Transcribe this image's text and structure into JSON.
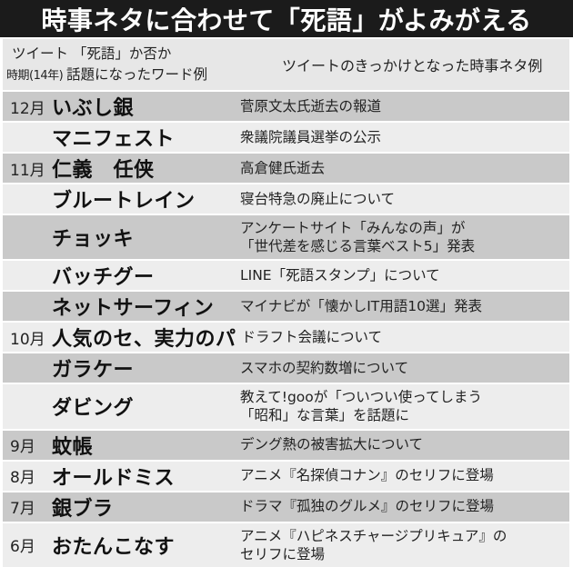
{
  "title_bar": {
    "title": "時事ネタに合わせて「死語」がよみがえる"
  },
  "table": {
    "header": {
      "word_header_line1": "ツイート 「死語」か否か",
      "period_header": "時期(14年)",
      "word_header_line2": "話題になったワード例",
      "news_header": "ツイートのきっかけとなった時事ネタ例"
    }
  },
  "chart_data": {
    "type": "table",
    "title": "時事ネタに合わせて「死語」がよみがえる",
    "columns": [
      "時期(14年)",
      "ツイート 「死語」か否か話題になったワード例",
      "ツイートのきっかけとなった時事ネタ例"
    ],
    "rows": [
      {
        "month": "12月",
        "word": "いぶし銀",
        "news": "菅原文太氏逝去の報道"
      },
      {
        "month": "",
        "word": "マニフェスト",
        "news": "衆議院議員選挙の公示"
      },
      {
        "month": "11月",
        "word": "仁義　任侠",
        "news": "高倉健氏逝去"
      },
      {
        "month": "",
        "word": "ブルートレイン",
        "news": "寝台特急の廃止について"
      },
      {
        "month": "",
        "word": "チョッキ",
        "news": "アンケートサイト「みんなの声」が\n「世代差を感じる言葉ベスト5」発表"
      },
      {
        "month": "",
        "word": "バッチグー",
        "news": "LINE「死語スタンプ」について"
      },
      {
        "month": "",
        "word": "ネットサーフィン",
        "news": "マイナビが「懐かしIT用語10選」発表"
      },
      {
        "month": "10月",
        "word": "人気のセ、実力のパ",
        "news": "ドラフト会議について"
      },
      {
        "month": "",
        "word": "ガラケー",
        "news": "スマホの契約数増について"
      },
      {
        "month": "",
        "word": "ダビング",
        "news": "教えて!gooが「ついつい使ってしまう\n「昭和」な言葉」を話題に"
      },
      {
        "month": "9月",
        "word": "蚊帳",
        "news": "デング熱の被害拡大について"
      },
      {
        "month": "8月",
        "word": "オールドミス",
        "news": "アニメ『名探偵コナン』のセリフに登場"
      },
      {
        "month": "7月",
        "word": "銀ブラ",
        "news": "ドラマ『孤独のグルメ』のセリフに登場"
      },
      {
        "month": "6月",
        "word": "おたんこなす",
        "news": "アニメ『ハピネスチャージプリキュア』の\nセリフに登場"
      }
    ]
  },
  "colors": {
    "title_bar_bg": "#1b1b1b",
    "title_text": "#ffffff",
    "header_row_bg": "#e7e7e7",
    "row_dark": "#c9c9c9",
    "row_light": "#ededed",
    "body_text": "#222222",
    "word_text": "#111111"
  }
}
